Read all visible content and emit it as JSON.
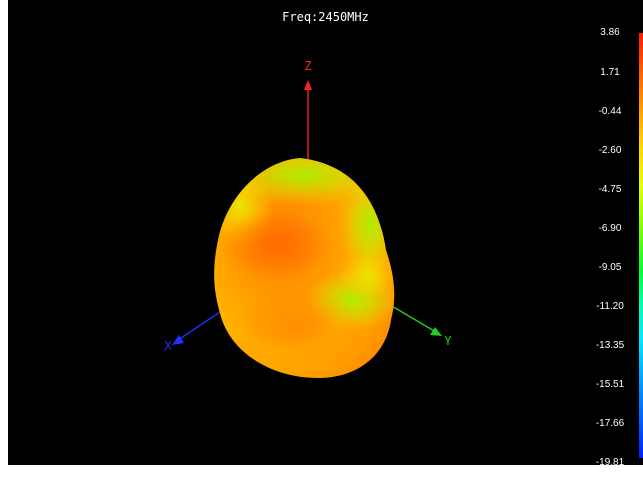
{
  "title": "Freq:2450MHz",
  "axes": {
    "z": "Z",
    "x": "X",
    "y": "Y"
  },
  "axis_colors": {
    "z": "#ff2020",
    "x": "#2030ff",
    "y": "#20d020"
  },
  "colorbar": {
    "ticks": [
      "3.86",
      "1.71",
      "-0.44",
      "-2.60",
      "-4.75",
      "-6.90",
      "-9.05",
      "-11.20",
      "-13.35",
      "-15.51",
      "-17.66",
      "-19.81"
    ]
  }
}
